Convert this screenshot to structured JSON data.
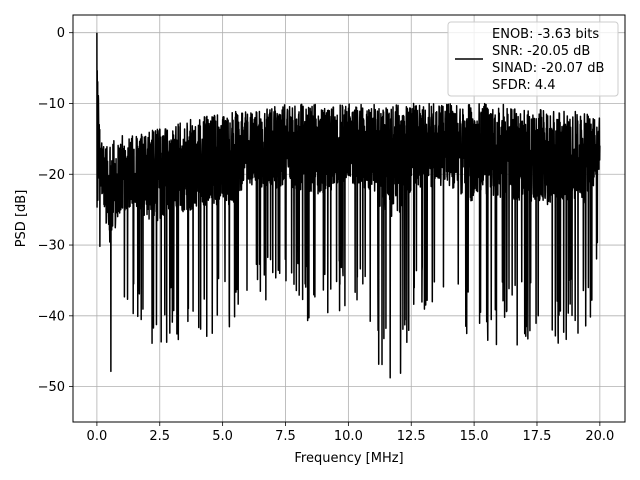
{
  "chart_data": {
    "type": "line",
    "xlabel": "Frequency [MHz]",
    "ylabel": "PSD [dB]",
    "xlim": [
      -0.95,
      21.0
    ],
    "ylim": [
      -55,
      2.5
    ],
    "xticks": [
      0.0,
      2.5,
      5.0,
      7.5,
      10.0,
      12.5,
      15.0,
      17.5,
      20.0
    ],
    "xtick_labels": [
      "0.0",
      "2.5",
      "5.0",
      "7.5",
      "10.0",
      "12.5",
      "15.0",
      "17.5",
      "20.0"
    ],
    "yticks": [
      0,
      -10,
      -20,
      -30,
      -40,
      -50
    ],
    "ytick_labels": [
      "0",
      "−10",
      "−20",
      "−30",
      "−40",
      "−50"
    ],
    "grid": true,
    "legend": {
      "placement": "top-right",
      "entries": [
        "ENOB: -3.63 bits",
        "SNR: -20.05 dB",
        "SINAD: -20.07 dB",
        "SFDR: 4.4"
      ]
    },
    "series": [
      {
        "color": "#000000",
        "x_start": 0.0,
        "x_end": 20.0,
        "x": [
          0.0,
          0.05,
          0.12,
          0.2,
          0.3,
          0.5,
          1.0,
          1.5,
          2.0,
          2.5,
          3.0,
          3.5,
          4.0,
          5.0,
          5.5,
          6.0,
          7.0,
          7.5,
          8.0,
          9.0,
          10.0,
          11.0,
          11.3,
          12.0,
          12.5,
          13.0,
          14.0,
          14.9,
          15.0,
          16.0,
          17.0,
          18.0,
          19.0,
          19.5,
          20.0
        ],
        "envelope_max": [
          0,
          -8,
          -14,
          -15,
          -15.5,
          -15,
          -14.5,
          -14.5,
          -14,
          -13.5,
          -13,
          -12.5,
          -12,
          -11.5,
          -11,
          -11,
          -10.5,
          -10,
          -10,
          -10,
          -10,
          -10,
          -10,
          -10,
          -10,
          -10,
          -10,
          -10,
          -10,
          -10,
          -10.5,
          -11,
          -11,
          -11.5,
          -12
        ],
        "envelope_min": [
          -24,
          -30,
          -35,
          -38,
          -41,
          -52.5,
          -42,
          -40,
          -46,
          -47,
          -42,
          -46,
          -44,
          -44,
          -46,
          -38,
          -40,
          -40,
          -41,
          -43,
          -38,
          -42,
          -50.5,
          -51,
          -42,
          -40,
          -40,
          -47.5,
          -42,
          -45,
          -44,
          -45,
          -43,
          -44,
          -30
        ]
      }
    ]
  }
}
